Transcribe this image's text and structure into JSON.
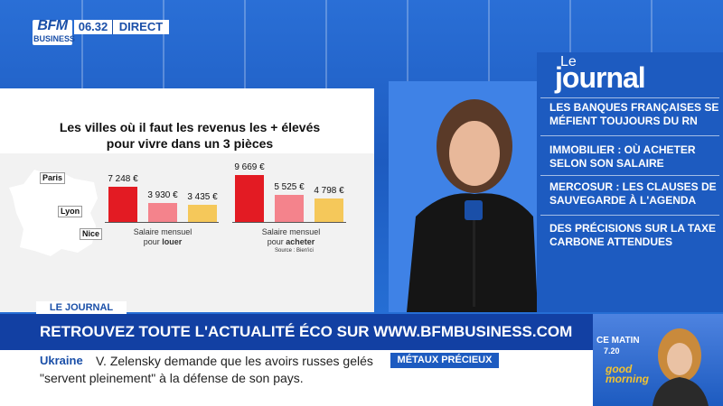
{
  "channel": {
    "logo_top": "BFM",
    "logo_bottom": "BUSINESS",
    "time": "06.32",
    "live": "DIRECT"
  },
  "infographic": {
    "title_line1": "Les villes où il faut les revenus les + élevés",
    "title_line2": "pour vivre dans un 3 pièces",
    "cities": [
      "Paris",
      "Lyon",
      "Nice"
    ],
    "source": "Source : Bien'ici",
    "colors": {
      "paris": "#e31b23",
      "lyon": "#f4838c",
      "nice": "#f5c85a"
    },
    "chart_data": {
      "type": "bar",
      "categories": [
        "Salaire mensuel pour louer",
        "Salaire mensuel pour acheter"
      ],
      "series": [
        {
          "name": "Paris",
          "values": [
            7248,
            9669
          ]
        },
        {
          "name": "Lyon",
          "values": [
            3930,
            5525
          ]
        },
        {
          "name": "Nice",
          "values": [
            3435,
            4798
          ]
        }
      ],
      "value_labels": [
        [
          "7 248 €",
          "3 930 €",
          "3 435 €"
        ],
        [
          "9 669 €",
          "5 525 €",
          "4 798 €"
        ]
      ],
      "group_labels": [
        {
          "line1": "Salaire mensuel",
          "line2_prefix": "pour ",
          "line2_bold": "louer"
        },
        {
          "line1": "Salaire mensuel",
          "line2_prefix": "pour ",
          "line2_bold": "acheter"
        }
      ],
      "ylim": [
        0,
        10000
      ]
    }
  },
  "journal": {
    "le": "Le",
    "title": "journal",
    "headlines": [
      "LES BANQUES FRANÇAISES SE MÉFIENT TOUJOURS DU RN",
      "IMMOBILIER : OÙ ACHETER SELON SON SALAIRE",
      "MERCOSUR : LES CLAUSES DE SAUVEGARDE À L'AGENDA",
      "DES PRÉCISIONS SUR LA TAXE CARBONE ATTENDUES"
    ]
  },
  "lower_third": {
    "tag": "LE JOURNAL",
    "banner": "RETROUVEZ TOUTE L'ACTUALITÉ ÉCO SUR WWW.BFMBUSINESS.COM"
  },
  "ticker": {
    "topic": "Ukraine",
    "line1": "V. Zelensky demande que les avoirs russes gelés",
    "line2": "\"servent pleinement\" à la défense de son pays.",
    "section": "MÉTAUX PRÉCIEUX"
  },
  "promo": {
    "show": "CE MATIN",
    "time": "7.20",
    "good_line1": "good",
    "good_line2": "morning"
  }
}
